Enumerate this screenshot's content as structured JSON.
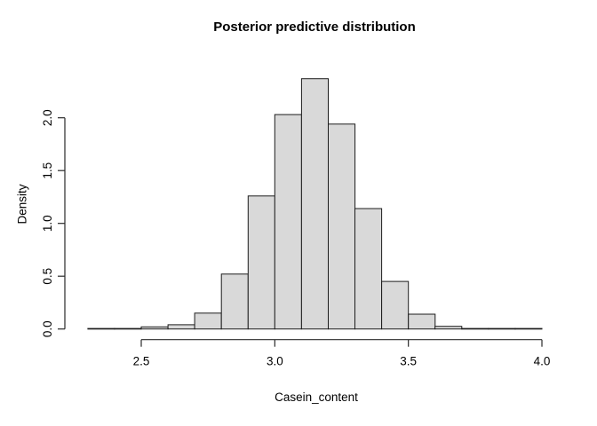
{
  "figure": {
    "background": "#ffffff"
  },
  "chart_data": {
    "type": "bar",
    "subtype": "histogram",
    "title": "Posterior predictive distribution",
    "xlabel": "Casein_content",
    "ylabel": "Density",
    "breaks": [
      2.3,
      2.4,
      2.5,
      2.6,
      2.7,
      2.8,
      2.9,
      3.0,
      3.1,
      3.2,
      3.3,
      3.4,
      3.5,
      3.6,
      3.7,
      3.8,
      3.9,
      4.0
    ],
    "densities": [
      0.005,
      0.005,
      0.02,
      0.04,
      0.15,
      0.52,
      1.26,
      2.03,
      2.37,
      1.94,
      1.14,
      0.45,
      0.14,
      0.025,
      0.005,
      0.005,
      0.005
    ],
    "x_ticks": {
      "values": [
        2.5,
        3.0,
        3.5,
        4.0
      ],
      "labels": [
        "2.5",
        "3.0",
        "3.5",
        "4.0"
      ]
    },
    "y_ticks": {
      "values": [
        0.0,
        0.5,
        1.0,
        1.5,
        2.0
      ],
      "labels": [
        "0.0",
        "0.5",
        "1.0",
        "1.5",
        "2.0"
      ]
    },
    "xlim": [
      2.3,
      4.0
    ],
    "ylim": [
      0,
      2.37
    ],
    "grid": false,
    "legend": null,
    "bar_fill": "#d9d9d9",
    "bar_stroke": "#1c1c1c",
    "axis_color": "#2a2a2a",
    "text_color": "#000000"
  }
}
